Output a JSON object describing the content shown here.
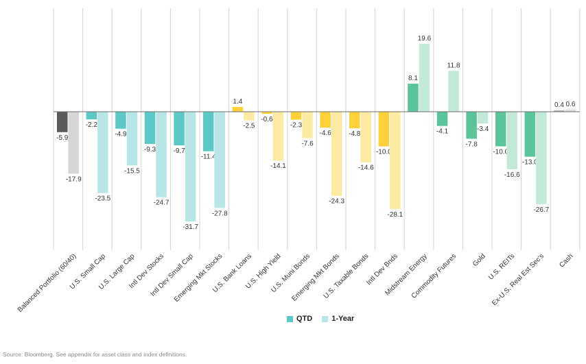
{
  "chart_data": {
    "type": "bar",
    "categories": [
      "Balanced Portfolio (60/40)",
      "U.S. Small Cap",
      "U.S. Large Cap",
      "Intl Dev Stocks",
      "Intl Dev Small Cap",
      "Emerging Mkt Stocks",
      "U.S. Bank Loans",
      "U.S. High Yield",
      "U.S. Muni Bonds",
      "Emerging Mkt Bonds",
      "U.S. Taxable Bonds",
      "Intl Dev Bnds",
      "Midstream Energy",
      "Commodity Futures",
      "Gold",
      "U.S. REITs",
      "Ex-U.S. Real Est Sec's",
      "Cash"
    ],
    "series": [
      {
        "name": "QTD",
        "values": [
          -5.9,
          -2.2,
          -4.9,
          -9.3,
          -9.7,
          -11.4,
          1.4,
          -0.6,
          -2.3,
          -4.6,
          -4.8,
          -10.0,
          8.1,
          -4.1,
          -7.8,
          -10.0,
          -13.0,
          0.4
        ]
      },
      {
        "name": "1-Year",
        "values": [
          -17.9,
          -23.5,
          -15.5,
          -24.7,
          -31.7,
          -27.8,
          -2.5,
          -14.1,
          -7.6,
          -24.3,
          -14.6,
          -28.1,
          19.6,
          11.8,
          -3.4,
          -16.6,
          -26.7,
          0.6
        ]
      }
    ],
    "value_labels": {
      "QTD": [
        "-5.9",
        "-2.2",
        "-4.9",
        "-9.3",
        "-9.7",
        "-11.4",
        "1.4",
        "-0.6",
        "-2.3",
        "-4.6",
        "-4.8",
        "-10.0",
        "8.1",
        "-4.1",
        "-7.8",
        "-10.0",
        "-13.0",
        "0.4"
      ],
      "1-Year": [
        "-17.9",
        "-23.5",
        "-15.5",
        "-24.7",
        "-31.7",
        "-27.8",
        "-2.5",
        "-14.1",
        "-7.6",
        "-24.3",
        "-14.6",
        "-28.1",
        "19.6",
        "11.8",
        "-3.4",
        "-16.6",
        "-26.7",
        "0.6"
      ]
    },
    "ylim": [
      -35,
      27
    ],
    "grid": "vertical separators between categories",
    "legend_position": "bottom-center",
    "colors": {
      "equity": [
        "#5cc8c6",
        "#b8e6e6"
      ],
      "balanced": [
        "#5a5a5a",
        "#d6d6d6"
      ],
      "fixed_income": [
        "#fcd13a",
        "#fdeaa2"
      ],
      "real_assets": [
        "#5cc49a",
        "#c2e9d7"
      ],
      "cash": [
        "#b0b0b0",
        "#dcdcdc"
      ],
      "legend_qtd": "#5cc8c6",
      "legend_1yr": "#b8e6e6"
    },
    "category_groups": [
      "balanced",
      "equity",
      "equity",
      "equity",
      "equity",
      "equity",
      "fixed_income",
      "fixed_income",
      "fixed_income",
      "fixed_income",
      "fixed_income",
      "fixed_income",
      "real_assets",
      "real_assets",
      "real_assets",
      "real_assets",
      "real_assets",
      "cash"
    ]
  },
  "legend": {
    "qtd": "QTD",
    "one_year": "1-Year"
  },
  "source": "Source: Bloomberg. See appendix for asset class and index definitions."
}
